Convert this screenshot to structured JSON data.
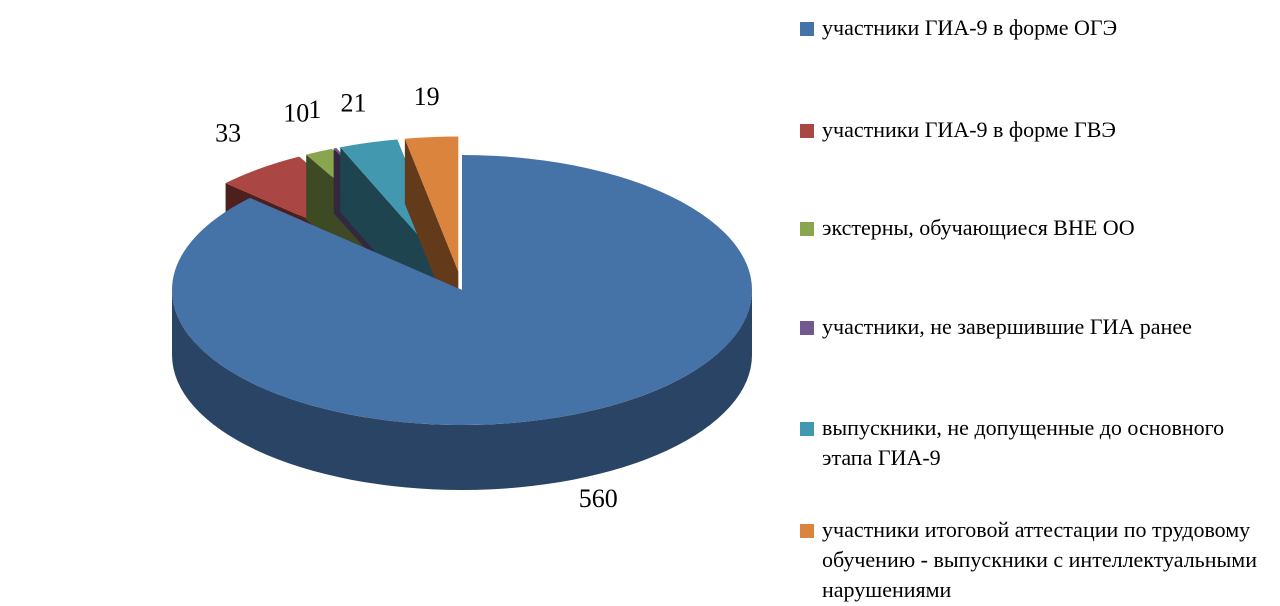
{
  "chart_data": {
    "type": "pie3d",
    "series": [
      {
        "name": "участники ГИА-9 в форме ОГЭ",
        "color": "#4572a7",
        "values": [
          560
        ]
      },
      {
        "name": "участники ГИА-9 в форме ГВЭ",
        "color": "#aa4643",
        "values": [
          33
        ]
      },
      {
        "name": "экстерны, обучающиеся ВНЕ ОО",
        "color": "#89a54e",
        "values": [
          10
        ]
      },
      {
        "name": "участники, не завершившие ГИА ранее",
        "color": "#71588f",
        "values": [
          1
        ]
      },
      {
        "name": "выпускники, не допущенные до основного этапа ГИА-9",
        "color": "#4198af",
        "values": [
          21
        ]
      },
      {
        "name": "участники итоговой аттестации по трудовому обучению - выпускники с интеллектуальными нарушениями",
        "color": "#db843d",
        "values": [
          19
        ]
      }
    ],
    "legend": "right"
  }
}
